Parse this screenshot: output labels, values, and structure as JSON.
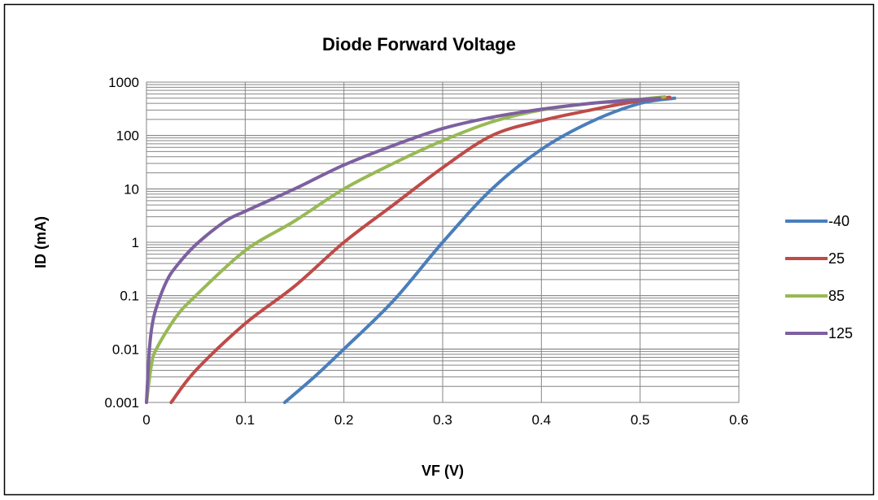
{
  "chart_data": {
    "type": "line",
    "title": "Diode Forward Voltage",
    "xlabel": "VF (V)",
    "ylabel": "ID (mA)",
    "xlim": [
      0,
      0.6
    ],
    "ylim": [
      0.001,
      1000
    ],
    "y_scale": "log",
    "grid": true,
    "legend_position": "right",
    "x_ticks": [
      "0",
      "0.1",
      "0.2",
      "0.3",
      "0.4",
      "0.5",
      "0.6"
    ],
    "y_ticks": [
      "0.001",
      "0.01",
      "0.1",
      "1",
      "10",
      "100",
      "1000"
    ],
    "series": [
      {
        "name": "-40",
        "color": "#4a7ebb",
        "x": [
          0.14,
          0.17,
          0.2,
          0.25,
          0.3,
          0.35,
          0.4,
          0.45,
          0.5,
          0.535
        ],
        "y": [
          0.001,
          0.003,
          0.01,
          0.08,
          1.0,
          10,
          55,
          180,
          400,
          500
        ]
      },
      {
        "name": "25",
        "color": "#be4b48",
        "x": [
          0.025,
          0.05,
          0.1,
          0.15,
          0.2,
          0.25,
          0.3,
          0.35,
          0.4,
          0.45,
          0.5,
          0.53
        ],
        "y": [
          0.001,
          0.004,
          0.03,
          0.15,
          1.0,
          5,
          25,
          100,
          190,
          300,
          450,
          520
        ]
      },
      {
        "name": "85",
        "color": "#98b954",
        "x": [
          0.0,
          0.005,
          0.01,
          0.03,
          0.05,
          0.1,
          0.15,
          0.2,
          0.25,
          0.3,
          0.35,
          0.4,
          0.45,
          0.5,
          0.525
        ],
        "y": [
          0.001,
          0.005,
          0.01,
          0.04,
          0.1,
          0.7,
          2.5,
          10,
          30,
          80,
          180,
          300,
          400,
          480,
          530
        ]
      },
      {
        "name": "125",
        "color": "#7d60a0",
        "x": [
          0.0,
          0.003,
          0.006,
          0.01,
          0.02,
          0.03,
          0.05,
          0.08,
          0.1,
          0.15,
          0.2,
          0.25,
          0.3,
          0.35,
          0.4,
          0.45,
          0.5,
          0.52
        ],
        "y": [
          0.001,
          0.01,
          0.03,
          0.06,
          0.18,
          0.35,
          0.9,
          2.5,
          3.8,
          10,
          28,
          65,
          135,
          220,
          310,
          400,
          470,
          500
        ]
      }
    ]
  }
}
